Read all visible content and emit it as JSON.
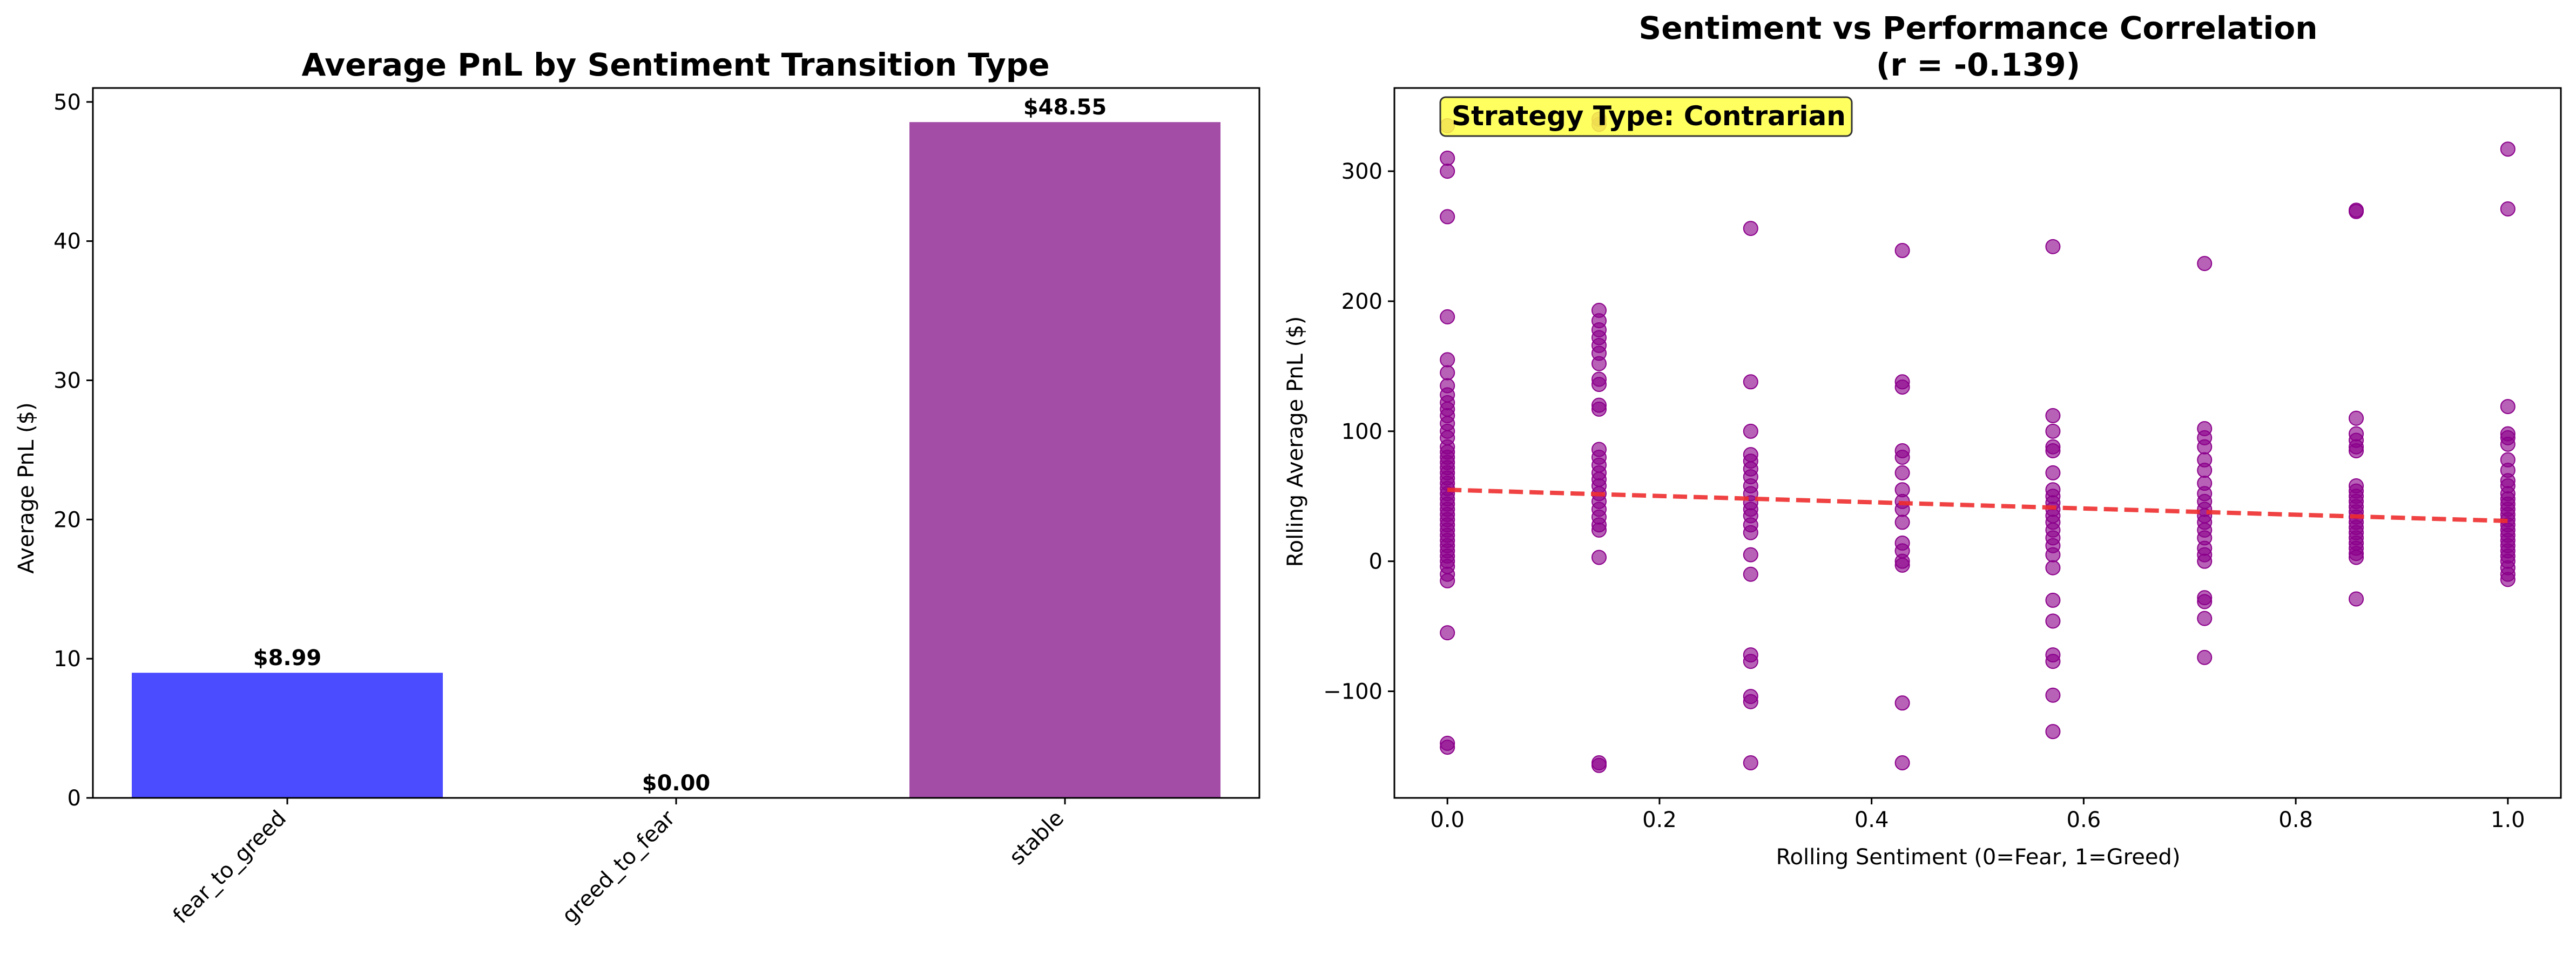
{
  "colors": {
    "fear_to_greed": "#4b4bff",
    "greed_to_fear": "#ff4b4b",
    "stable": "#a34da6",
    "points": "#8b008b",
    "trend": "#ee2e2e",
    "note_bg": "#ffff44"
  },
  "chart_data": [
    {
      "type": "bar",
      "title": "Average PnL by Sentiment Transition Type",
      "xlabel": "",
      "ylabel": "Average PnL ($)",
      "categories": [
        "fear_to_greed",
        "greed_to_fear",
        "stable"
      ],
      "values": [
        8.99,
        0.0,
        48.55
      ],
      "value_labels": [
        "$8.99",
        "$0.00",
        "$48.55"
      ],
      "ylim": [
        0,
        51
      ],
      "yticks": [
        0,
        10,
        20,
        30,
        40,
        50
      ],
      "reference_line": {
        "y": 0,
        "style": "dashed"
      },
      "grid": false
    },
    {
      "type": "scatter",
      "title_line1": "Sentiment vs Performance Correlation",
      "title_line2": "(r = -0.139)",
      "xlabel": "Rolling Sentiment (0=Fear, 1=Greed)",
      "ylabel": "Rolling Average PnL ($)",
      "xlim": [
        -0.05,
        1.05
      ],
      "ylim": [
        -182,
        364
      ],
      "xticks": [
        0.0,
        0.2,
        0.4,
        0.6,
        0.8,
        1.0
      ],
      "xtick_labels": [
        "0.0",
        "0.2",
        "0.4",
        "0.6",
        "0.8",
        "1.0"
      ],
      "yticks": [
        -100,
        0,
        100,
        200,
        300
      ],
      "ytick_labels": [
        "−100",
        "0",
        "100",
        "200",
        "300"
      ],
      "annotation": "Strategy Type: Contrarian",
      "trend_line": {
        "x": [
          0.0,
          1.0
        ],
        "y": [
          55,
          31
        ],
        "style": "dashed"
      },
      "grid": false,
      "points": [
        [
          0,
          335
        ],
        [
          0,
          310
        ],
        [
          0,
          300
        ],
        [
          0,
          265
        ],
        [
          0,
          188
        ],
        [
          0,
          155
        ],
        [
          0,
          145
        ],
        [
          0,
          135
        ],
        [
          0,
          128
        ],
        [
          0,
          122
        ],
        [
          0,
          117
        ],
        [
          0,
          112
        ],
        [
          0,
          106
        ],
        [
          0,
          100
        ],
        [
          0,
          95
        ],
        [
          0,
          88
        ],
        [
          0,
          84
        ],
        [
          0,
          80
        ],
        [
          0,
          76
        ],
        [
          0,
          72
        ],
        [
          0,
          68
        ],
        [
          0,
          64
        ],
        [
          0,
          60
        ],
        [
          0,
          56
        ],
        [
          0,
          52
        ],
        [
          0,
          48
        ],
        [
          0,
          44
        ],
        [
          0,
          40
        ],
        [
          0,
          36
        ],
        [
          0,
          32
        ],
        [
          0,
          28
        ],
        [
          0,
          24
        ],
        [
          0,
          20
        ],
        [
          0,
          16
        ],
        [
          0,
          12
        ],
        [
          0,
          8
        ],
        [
          0,
          4
        ],
        [
          0,
          0
        ],
        [
          0,
          -4
        ],
        [
          0,
          -10
        ],
        [
          0,
          -15
        ],
        [
          0,
          -55
        ],
        [
          0,
          -140
        ],
        [
          0,
          -143
        ],
        [
          0.143,
          340
        ],
        [
          0.143,
          336
        ],
        [
          0.143,
          193
        ],
        [
          0.143,
          185
        ],
        [
          0.143,
          178
        ],
        [
          0.143,
          172
        ],
        [
          0.143,
          166
        ],
        [
          0.143,
          160
        ],
        [
          0.143,
          152
        ],
        [
          0.143,
          140
        ],
        [
          0.143,
          136
        ],
        [
          0.143,
          120
        ],
        [
          0.143,
          117
        ],
        [
          0.143,
          86
        ],
        [
          0.143,
          80
        ],
        [
          0.143,
          74
        ],
        [
          0.143,
          68
        ],
        [
          0.143,
          63
        ],
        [
          0.143,
          58
        ],
        [
          0.143,
          52
        ],
        [
          0.143,
          46
        ],
        [
          0.143,
          40
        ],
        [
          0.143,
          34
        ],
        [
          0.143,
          28
        ],
        [
          0.143,
          24
        ],
        [
          0.143,
          3
        ],
        [
          0.143,
          -155
        ],
        [
          0.143,
          -157
        ],
        [
          0.286,
          256
        ],
        [
          0.286,
          138
        ],
        [
          0.286,
          100
        ],
        [
          0.286,
          82
        ],
        [
          0.286,
          77
        ],
        [
          0.286,
          71
        ],
        [
          0.286,
          65
        ],
        [
          0.286,
          58
        ],
        [
          0.286,
          52
        ],
        [
          0.286,
          45
        ],
        [
          0.286,
          40
        ],
        [
          0.286,
          35
        ],
        [
          0.286,
          28
        ],
        [
          0.286,
          22
        ],
        [
          0.286,
          5
        ],
        [
          0.286,
          -10
        ],
        [
          0.286,
          -72
        ],
        [
          0.286,
          -77
        ],
        [
          0.286,
          -104
        ],
        [
          0.286,
          -108
        ],
        [
          0.286,
          -155
        ],
        [
          0.429,
          239
        ],
        [
          0.429,
          138
        ],
        [
          0.429,
          134
        ],
        [
          0.429,
          85
        ],
        [
          0.429,
          80
        ],
        [
          0.429,
          68
        ],
        [
          0.429,
          55
        ],
        [
          0.429,
          46
        ],
        [
          0.429,
          40
        ],
        [
          0.429,
          30
        ],
        [
          0.429,
          14
        ],
        [
          0.429,
          8
        ],
        [
          0.429,
          0
        ],
        [
          0.429,
          -3
        ],
        [
          0.429,
          -109
        ],
        [
          0.429,
          -155
        ],
        [
          0.571,
          242
        ],
        [
          0.571,
          112
        ],
        [
          0.571,
          100
        ],
        [
          0.571,
          88
        ],
        [
          0.571,
          85
        ],
        [
          0.571,
          68
        ],
        [
          0.571,
          55
        ],
        [
          0.571,
          50
        ],
        [
          0.571,
          45
        ],
        [
          0.571,
          40
        ],
        [
          0.571,
          35
        ],
        [
          0.571,
          30
        ],
        [
          0.571,
          24
        ],
        [
          0.571,
          18
        ],
        [
          0.571,
          12
        ],
        [
          0.571,
          5
        ],
        [
          0.571,
          -5
        ],
        [
          0.571,
          -30
        ],
        [
          0.571,
          -46
        ],
        [
          0.571,
          -72
        ],
        [
          0.571,
          -77
        ],
        [
          0.571,
          -103
        ],
        [
          0.571,
          -131
        ],
        [
          0.714,
          229
        ],
        [
          0.714,
          102
        ],
        [
          0.714,
          95
        ],
        [
          0.714,
          88
        ],
        [
          0.714,
          78
        ],
        [
          0.714,
          70
        ],
        [
          0.714,
          60
        ],
        [
          0.714,
          52
        ],
        [
          0.714,
          46
        ],
        [
          0.714,
          40
        ],
        [
          0.714,
          35
        ],
        [
          0.714,
          30
        ],
        [
          0.714,
          24
        ],
        [
          0.714,
          18
        ],
        [
          0.714,
          10
        ],
        [
          0.714,
          5
        ],
        [
          0.714,
          0
        ],
        [
          0.714,
          -28
        ],
        [
          0.714,
          -31
        ],
        [
          0.714,
          -44
        ],
        [
          0.714,
          -74
        ],
        [
          0.857,
          270
        ],
        [
          0.857,
          269
        ],
        [
          0.857,
          110
        ],
        [
          0.857,
          98
        ],
        [
          0.857,
          93
        ],
        [
          0.857,
          88
        ],
        [
          0.857,
          85
        ],
        [
          0.857,
          58
        ],
        [
          0.857,
          54
        ],
        [
          0.857,
          50
        ],
        [
          0.857,
          46
        ],
        [
          0.857,
          42
        ],
        [
          0.857,
          38
        ],
        [
          0.857,
          34
        ],
        [
          0.857,
          30
        ],
        [
          0.857,
          26
        ],
        [
          0.857,
          22
        ],
        [
          0.857,
          18
        ],
        [
          0.857,
          14
        ],
        [
          0.857,
          10
        ],
        [
          0.857,
          6
        ],
        [
          0.857,
          3
        ],
        [
          0.857,
          -29
        ],
        [
          1.0,
          317
        ],
        [
          1.0,
          271
        ],
        [
          1.0,
          119
        ],
        [
          1.0,
          98
        ],
        [
          1.0,
          95
        ],
        [
          1.0,
          90
        ],
        [
          1.0,
          78
        ],
        [
          1.0,
          70
        ],
        [
          1.0,
          62
        ],
        [
          1.0,
          58
        ],
        [
          1.0,
          52
        ],
        [
          1.0,
          48
        ],
        [
          1.0,
          44
        ],
        [
          1.0,
          40
        ],
        [
          1.0,
          36
        ],
        [
          1.0,
          32
        ],
        [
          1.0,
          28
        ],
        [
          1.0,
          24
        ],
        [
          1.0,
          20
        ],
        [
          1.0,
          16
        ],
        [
          1.0,
          12
        ],
        [
          1.0,
          8
        ],
        [
          1.0,
          4
        ],
        [
          1.0,
          0
        ],
        [
          1.0,
          -5
        ],
        [
          1.0,
          -10
        ],
        [
          1.0,
          -14
        ]
      ]
    }
  ]
}
